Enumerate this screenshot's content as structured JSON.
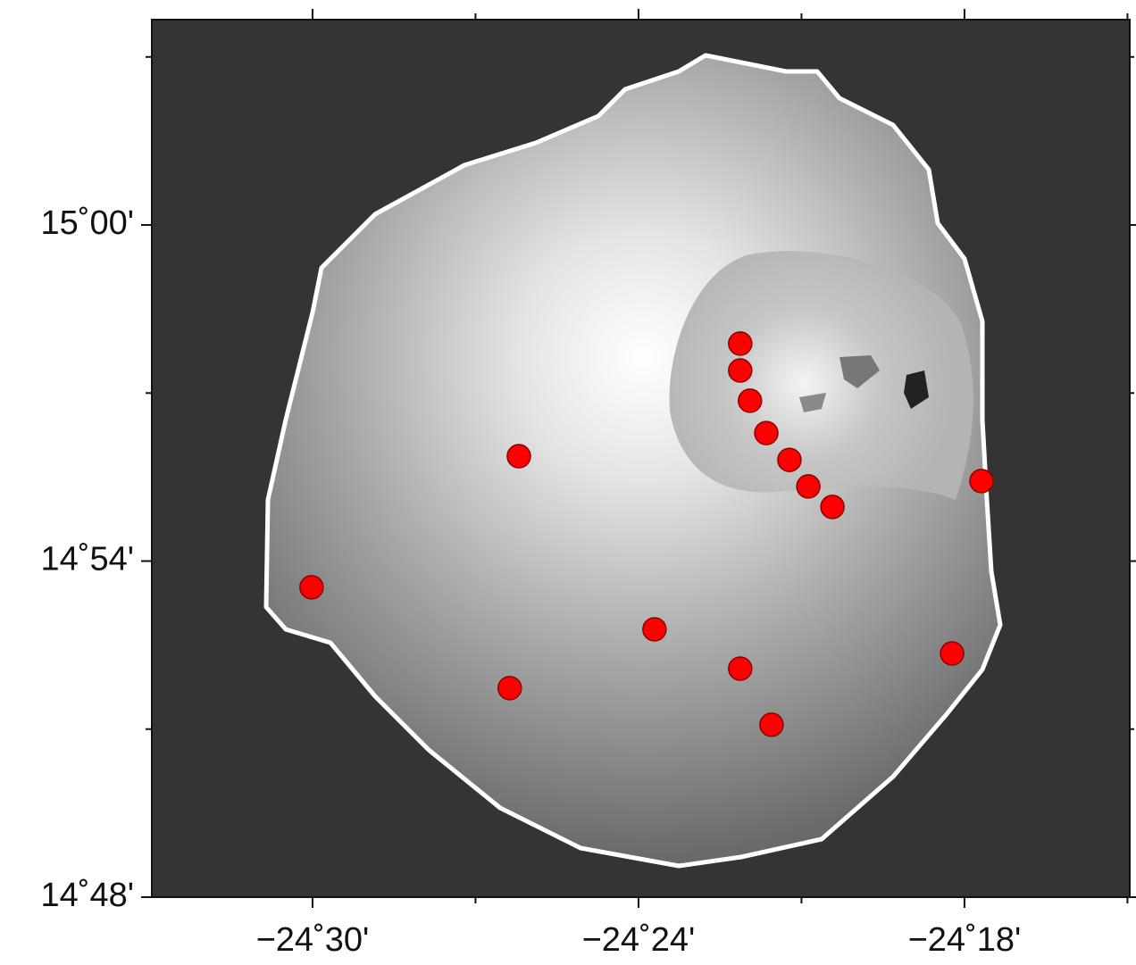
{
  "chart_data": {
    "type": "scatter",
    "x": [
      -24.3688,
      -24.3688,
      -24.3658,
      -24.3608,
      -24.3537,
      -24.3479,
      -24.3405,
      -24.4367,
      -24.2948,
      -24.5003,
      -24.3951,
      -24.4395,
      -24.3688,
      -24.3592,
      -24.3038
    ],
    "values": [
      14.9647,
      14.9567,
      14.9477,
      14.9381,
      14.9301,
      14.9222,
      14.9161,
      14.9312,
      14.9238,
      14.8922,
      14.8797,
      14.8622,
      14.868,
      14.8513,
      14.8725
    ],
    "color": "#ff0000",
    "xlim": [
      -24.5493,
      -24.2493
    ],
    "ylim": [
      14.8,
      15.0611
    ],
    "xticks": [
      {
        "value": -24.5,
        "label": "−24˚30'"
      },
      {
        "value": -24.4,
        "label": "−24˚24'"
      },
      {
        "value": -24.3,
        "label": "−24˚18'"
      }
    ],
    "yticks": [
      {
        "value": 14.8,
        "label": "14˚48'"
      },
      {
        "value": 14.9,
        "label": "14˚54'"
      },
      {
        "value": 15.0,
        "label": "15˚00'"
      }
    ]
  }
}
